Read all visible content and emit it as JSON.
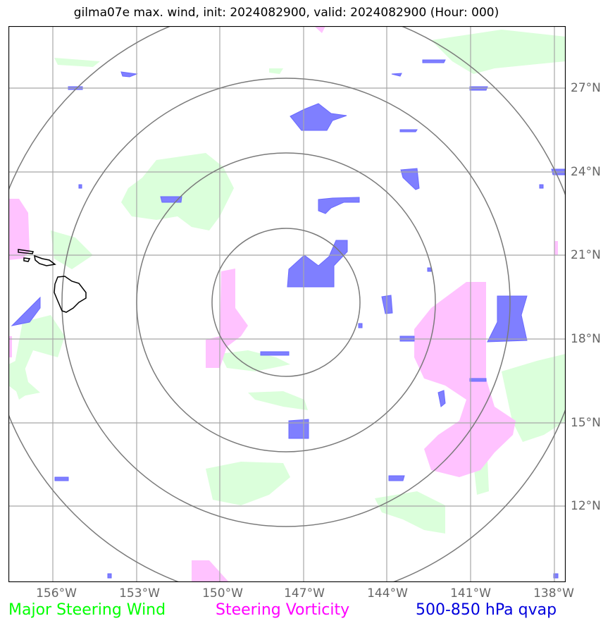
{
  "title": "gilma07e max. wind, init: 2024082900, valid: 2024082900 (Hour: 000)",
  "axes": {
    "lat_labels": [
      "27°N",
      "24°N",
      "21°N",
      "18°N",
      "15°N",
      "12°N"
    ],
    "lon_labels": [
      "156°W",
      "153°W",
      "150°W",
      "147°W",
      "144°W",
      "141°W",
      "138°W"
    ],
    "label_color": "#666666",
    "grid": true
  },
  "legend": {
    "wind": "Major Steering Wind",
    "vorticity": "Steering Vorticity",
    "qvap": "500-850 hPa qvap"
  },
  "colors": {
    "wind": "#00ff00",
    "wind_fill": "#dbffdb",
    "vorticity": "#ff00ff",
    "vorticity_fill": "#ffc2ff",
    "qvap": "#0000dd",
    "qvap_fill": "#7f7fff",
    "rings": "#7a7a7a",
    "grid": "#a8a8a8"
  },
  "map": {
    "projection": "polar rings centered on storm",
    "ring_count": 4,
    "coastline": "Hawaiian Islands"
  }
}
